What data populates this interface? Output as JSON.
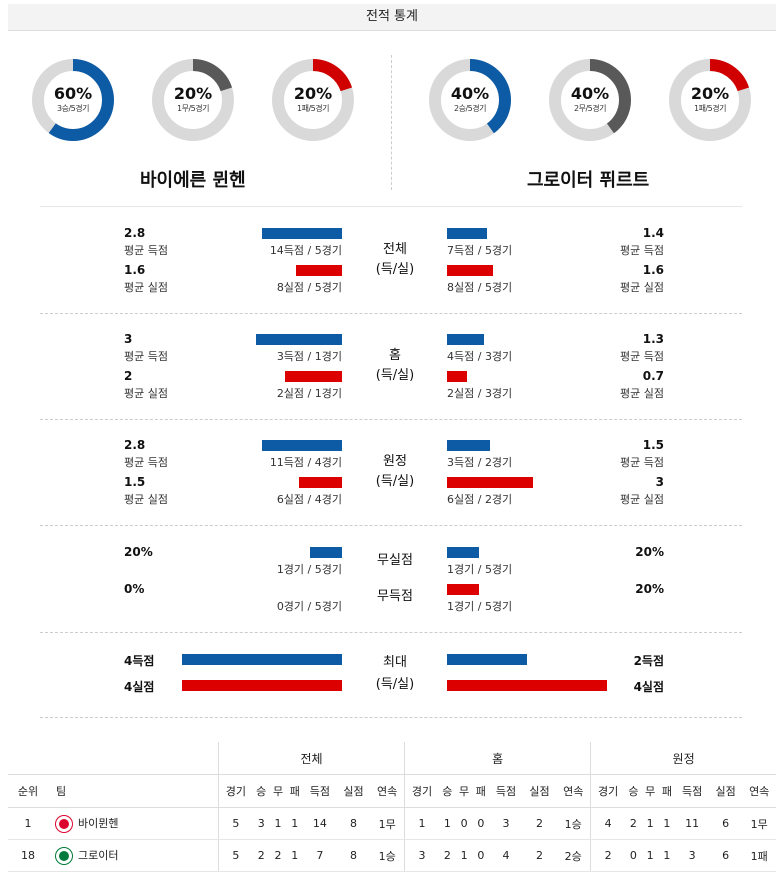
{
  "header": {
    "title": "전적 통계"
  },
  "colors": {
    "blue": "#0e5ba5",
    "red": "#d00000",
    "gray": "#595959",
    "track": "#d9d9d9"
  },
  "donuts": [
    {
      "pct": "60%",
      "sub": "3승/5경기",
      "fraction": 0.6,
      "color": "#0e5ba5"
    },
    {
      "pct": "20%",
      "sub": "1무/5경기",
      "fraction": 0.2,
      "color": "#595959"
    },
    {
      "pct": "20%",
      "sub": "1패/5경기",
      "fraction": 0.2,
      "color": "#d00000"
    },
    {
      "pct": "40%",
      "sub": "2승/5경기",
      "fraction": 0.4,
      "color": "#0e5ba5"
    },
    {
      "pct": "40%",
      "sub": "2무/5경기",
      "fraction": 0.4,
      "color": "#595959"
    },
    {
      "pct": "20%",
      "sub": "1패/5경기",
      "fraction": 0.2,
      "color": "#d00000"
    }
  ],
  "teams": {
    "home": "바이에른 뮌헨",
    "away": "그로이터 퓌르트"
  },
  "sections": [
    {
      "cat1": "전체",
      "cat2": "(득/실)",
      "left": [
        {
          "val": "2.8",
          "label": "평균 득점",
          "count": "14득점 / 5경기",
          "level": 0.5
        },
        {
          "val": "1.6",
          "label": "평균 실점",
          "count": "8실점 / 5경기",
          "level": 0.286
        }
      ],
      "right": [
        {
          "val": "1.4",
          "label": "평균 득점",
          "count": "7득점 / 5경기",
          "level": 0.25
        },
        {
          "val": "1.6",
          "label": "평균 실점",
          "count": "8실점 / 5경기",
          "level": 0.286
        }
      ]
    },
    {
      "cat1": "홈",
      "cat2": "(득/실)",
      "left": [
        {
          "val": "3",
          "label": "평균 득점",
          "count": "3득점 / 1경기",
          "level": 0.536
        },
        {
          "val": "2",
          "label": "평균 실점",
          "count": "2실점 / 1경기",
          "level": 0.357
        }
      ],
      "right": [
        {
          "val": "1.3",
          "label": "평균 득점",
          "count": "4득점 / 3경기",
          "level": 0.232
        },
        {
          "val": "0.7",
          "label": "평균 실점",
          "count": "2실점 / 3경기",
          "level": 0.125
        }
      ]
    },
    {
      "cat1": "원정",
      "cat2": "(득/실)",
      "left": [
        {
          "val": "2.8",
          "label": "평균 득점",
          "count": "11득점 / 4경기",
          "level": 0.5
        },
        {
          "val": "1.5",
          "label": "평균 실점",
          "count": "6실점 / 4경기",
          "level": 0.268
        }
      ],
      "right": [
        {
          "val": "1.5",
          "label": "평균 득점",
          "count": "3득점 / 2경기",
          "level": 0.268
        },
        {
          "val": "3",
          "label": "평균 실점",
          "count": "6실점 / 2경기",
          "level": 0.536
        }
      ]
    }
  ],
  "nogoal": {
    "cat1": "무실점",
    "cat2": "무득점",
    "left": [
      {
        "val": "20%",
        "count": "1경기 / 5경기",
        "level": 0.2
      },
      {
        "val": "0%",
        "count": "0경기 / 5경기",
        "level": 0
      }
    ],
    "right": [
      {
        "val": "20%",
        "count": "1경기 / 5경기",
        "level": 0.2
      },
      {
        "val": "20%",
        "count": "1경기 / 5경기",
        "level": 0.2
      }
    ]
  },
  "max": {
    "cat1": "최대",
    "cat2": "(득/실)",
    "left": [
      {
        "val": "4득점",
        "level": 1.0
      },
      {
        "val": "4실점",
        "level": 1.0
      }
    ],
    "right": [
      {
        "val": "2득점",
        "level": 0.5
      },
      {
        "val": "4실점",
        "level": 1.0
      }
    ]
  },
  "table": {
    "groups": [
      "전체",
      "홈",
      "원정"
    ],
    "col_rank": "순위",
    "col_team": "팀",
    "subcols": [
      "경기",
      "승",
      "무",
      "패",
      "득점",
      "실점",
      "연속"
    ],
    "rows": [
      {
        "rank": "1",
        "team": "바이뮌헨",
        "logo_color": "#dc052d",
        "total": [
          "5",
          "3",
          "1",
          "1",
          "14",
          "8",
          "1무"
        ],
        "home": [
          "1",
          "1",
          "0",
          "0",
          "3",
          "2",
          "1승"
        ],
        "away": [
          "4",
          "2",
          "1",
          "1",
          "11",
          "6",
          "1무"
        ]
      },
      {
        "rank": "18",
        "team": "그로이터",
        "logo_color": "#007a3d",
        "total": [
          "5",
          "2",
          "2",
          "1",
          "7",
          "8",
          "1승"
        ],
        "home": [
          "3",
          "2",
          "1",
          "0",
          "4",
          "2",
          "2승"
        ],
        "away": [
          "2",
          "0",
          "1",
          "1",
          "3",
          "6",
          "1패"
        ]
      }
    ]
  }
}
